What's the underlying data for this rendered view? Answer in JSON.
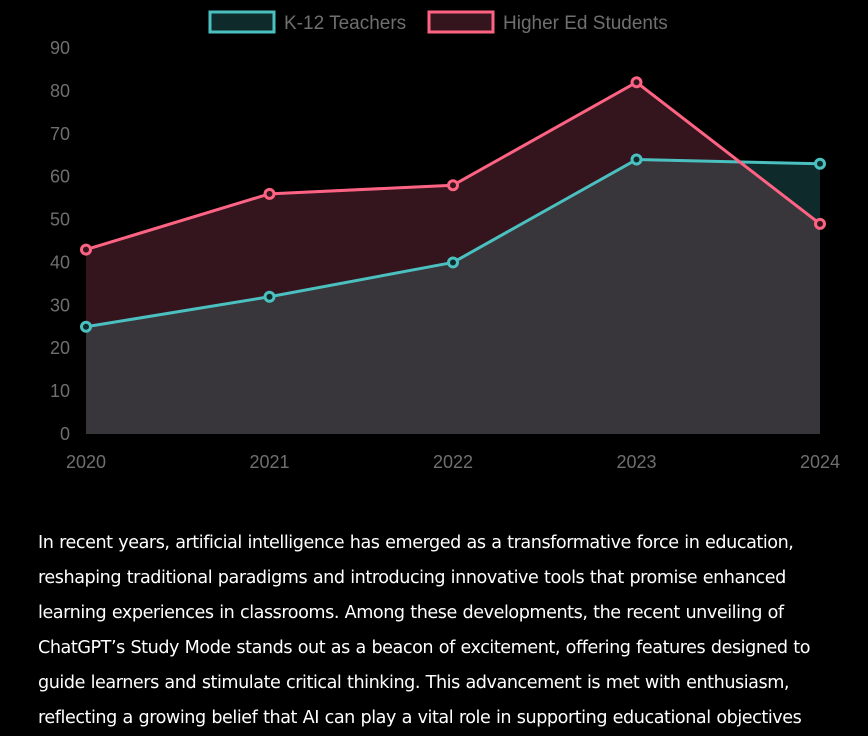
{
  "chart_data": {
    "type": "area",
    "x": [
      "2020",
      "2021",
      "2022",
      "2023",
      "2024"
    ],
    "series": [
      {
        "name": "K-12 Teachers",
        "values": [
          25,
          32,
          40,
          64,
          63
        ],
        "stroke": "#4bc0c0",
        "fill": "#0e2a2a"
      },
      {
        "name": "Higher Ed Students",
        "values": [
          43,
          56,
          58,
          82,
          49
        ],
        "stroke": "#ff6384",
        "fill": "#34151d"
      }
    ],
    "stack_fill": "#38363a",
    "ylim": [
      0,
      90
    ],
    "yticks": [
      "0",
      "10",
      "20",
      "30",
      "40",
      "50",
      "60",
      "70",
      "80",
      "90"
    ],
    "grid": false,
    "legend_position": "top",
    "title": "",
    "xlabel": "",
    "ylabel": ""
  },
  "article": {
    "text": "In recent years, artificial intelligence has emerged as a transformative force in education, reshaping traditional paradigms and introducing innovative tools that promise enhanced learning experiences in classrooms. Among these developments, the recent unveiling of ChatGPT’s Study Mode stands out as a beacon of excitement, offering features designed to guide learners and stimulate critical thinking. This advancement is met with enthusiasm, reflecting a growing belief that AI can play a vital role in supporting educational objectives"
  }
}
